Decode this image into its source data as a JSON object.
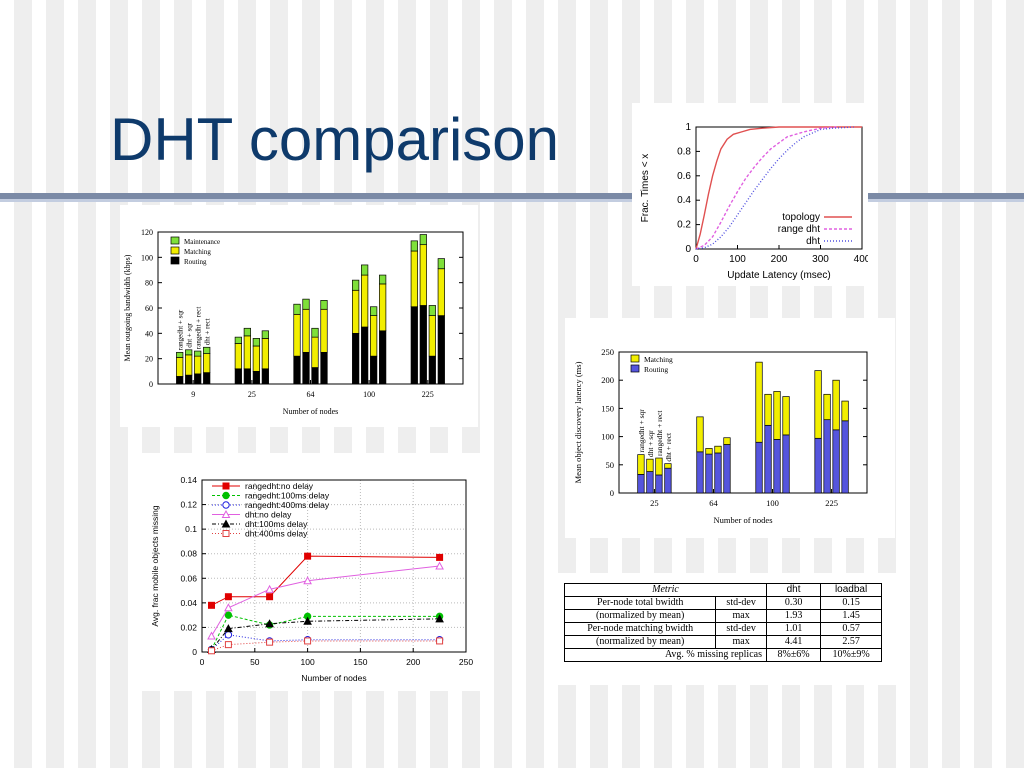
{
  "slide": {
    "title": "DHT comparison"
  },
  "chart_data": [
    {
      "id": "bandwidth",
      "type": "bar",
      "stacked": true,
      "ylabel": "Mean outgoing bandwidth (kbps)",
      "xlabel": "Number of nodes",
      "ylim": [
        0,
        120
      ],
      "yticks": [
        0,
        20,
        40,
        60,
        80,
        100,
        120
      ],
      "categories": [
        "9",
        "25",
        "64",
        "100",
        "225"
      ],
      "bar_labels": [
        "rangedht + sqr",
        "dht + sqr",
        "rangedht + rect",
        "dht + rect"
      ],
      "legend": [
        "Maintenance",
        "Matching",
        "Routing"
      ],
      "series": [
        {
          "name": "Routing",
          "color": "#000000",
          "values": [
            [
              6,
              7,
              8,
              9
            ],
            [
              12,
              12,
              10,
              12
            ],
            [
              22,
              25,
              13,
              25
            ],
            [
              40,
              45,
              22,
              42
            ],
            [
              61,
              62,
              22,
              54
            ]
          ]
        },
        {
          "name": "Matching",
          "color": "#f2ee00",
          "values": [
            [
              15,
              16,
              14,
              15
            ],
            [
              20,
              26,
              20,
              24
            ],
            [
              33,
              34,
              24,
              34
            ],
            [
              34,
              41,
              32,
              37
            ],
            [
              44,
              48,
              32,
              37
            ]
          ]
        },
        {
          "name": "Maintenance",
          "color": "#7fe03a",
          "values": [
            [
              4,
              4,
              4,
              5
            ],
            [
              5,
              6,
              6,
              6
            ],
            [
              8,
              8,
              7,
              7
            ],
            [
              8,
              8,
              7,
              7
            ],
            [
              8,
              8,
              8,
              8
            ]
          ]
        }
      ]
    },
    {
      "id": "latency-cdf",
      "type": "line",
      "ylabel": "Frac. Times < x",
      "xlabel": "Update Latency (msec)",
      "xlim": [
        0,
        400
      ],
      "ylim": [
        0,
        1
      ],
      "xticks": [
        0,
        100,
        200,
        300,
        400
      ],
      "yticks": [
        0,
        0.2,
        0.4,
        0.6,
        0.8,
        1
      ],
      "legend": [
        "topology",
        "range dht",
        "dht"
      ],
      "series": [
        {
          "name": "topology",
          "color": "#e05050",
          "dash": "",
          "x": [
            0,
            10,
            20,
            30,
            40,
            50,
            60,
            75,
            90,
            110,
            130,
            160,
            200,
            400
          ],
          "y": [
            0,
            0.12,
            0.28,
            0.45,
            0.6,
            0.72,
            0.82,
            0.9,
            0.94,
            0.96,
            0.98,
            0.99,
            1,
            1
          ]
        },
        {
          "name": "range dht",
          "color": "#e060e0",
          "dash": "3,2",
          "x": [
            0,
            20,
            40,
            60,
            80,
            100,
            120,
            140,
            160,
            180,
            200,
            220,
            260,
            300,
            340
          ],
          "y": [
            0,
            0.03,
            0.1,
            0.22,
            0.35,
            0.47,
            0.58,
            0.67,
            0.75,
            0.82,
            0.87,
            0.92,
            0.96,
            0.99,
            1
          ]
        },
        {
          "name": "dht",
          "color": "#5050e0",
          "dash": "1,2",
          "x": [
            0,
            20,
            40,
            60,
            80,
            100,
            120,
            140,
            160,
            180,
            200,
            220,
            240,
            260,
            280,
            300,
            330,
            380
          ],
          "y": [
            0,
            0.01,
            0.04,
            0.1,
            0.18,
            0.28,
            0.38,
            0.48,
            0.57,
            0.66,
            0.74,
            0.81,
            0.87,
            0.92,
            0.95,
            0.98,
            0.99,
            1
          ]
        }
      ]
    },
    {
      "id": "discovery-latency",
      "type": "bar",
      "stacked": true,
      "ylabel": "Mean object discovery latency (ms)",
      "xlabel": "Number of nodes",
      "ylim": [
        0,
        250
      ],
      "yticks": [
        0,
        50,
        100,
        150,
        200,
        250
      ],
      "categories": [
        "25",
        "64",
        "100",
        "225"
      ],
      "bar_labels": [
        "rangedht + sqr",
        "dht + sqr",
        "rangedht + rect",
        "dht + rect"
      ],
      "legend": [
        "Matching",
        "Routing"
      ],
      "series": [
        {
          "name": "Routing",
          "color": "#5555dd",
          "values": [
            [
              33,
              38,
              32,
              44
            ],
            [
              73,
              69,
              71,
              86
            ],
            [
              90,
              120,
              95,
              103
            ],
            [
              97,
              130,
              112,
              128
            ]
          ]
        },
        {
          "name": "Matching",
          "color": "#f2ee00",
          "values": [
            [
              35,
              22,
              30,
              8
            ],
            [
              62,
              10,
              12,
              12
            ],
            [
              142,
              55,
              85,
              68
            ],
            [
              120,
              45,
              88,
              35
            ]
          ]
        }
      ]
    },
    {
      "id": "missing-objects",
      "type": "line",
      "ylabel": "Avg. frac mobile objects missing",
      "xlabel": "Number of nodes",
      "xlim": [
        0,
        250
      ],
      "ylim": [
        0,
        0.14
      ],
      "xticks": [
        0,
        50,
        100,
        150,
        200,
        250
      ],
      "yticks": [
        0,
        0.02,
        0.04,
        0.06,
        0.08,
        0.1,
        0.12,
        0.14
      ],
      "series": [
        {
          "name": "rangedht:no delay",
          "color": "#e00000",
          "marker": "square-filled",
          "dash": "",
          "x": [
            9,
            25,
            64,
            100,
            225
          ],
          "y": [
            0.038,
            0.045,
            0.045,
            0.078,
            0.077
          ]
        },
        {
          "name": "rangedht:100ms delay",
          "color": "#00c000",
          "marker": "circle-filled",
          "dash": "3,2",
          "x": [
            9,
            25,
            64,
            100,
            225
          ],
          "y": [
            0.002,
            0.03,
            0.022,
            0.029,
            0.029
          ]
        },
        {
          "name": "rangedht:400ms delay",
          "color": "#2020e0",
          "marker": "circle-open",
          "dash": "1,2",
          "x": [
            9,
            25,
            64,
            100,
            225
          ],
          "y": [
            0.002,
            0.014,
            0.009,
            0.01,
            0.01
          ]
        },
        {
          "name": "dht:no delay",
          "color": "#e060e0",
          "marker": "triangle-open",
          "dash": "",
          "x": [
            9,
            25,
            64,
            100,
            225
          ],
          "y": [
            0.013,
            0.036,
            0.051,
            0.058,
            0.07
          ]
        },
        {
          "name": "dht:100ms delay",
          "color": "#000000",
          "marker": "triangle-filled",
          "dash": "4,2,1,2",
          "x": [
            9,
            25,
            64,
            100,
            225
          ],
          "y": [
            0.002,
            0.019,
            0.023,
            0.025,
            0.027
          ]
        },
        {
          "name": "dht:400ms delay",
          "color": "#e04040",
          "marker": "square-open",
          "dash": "1,2",
          "x": [
            9,
            25,
            64,
            100,
            225
          ],
          "y": [
            0.001,
            0.006,
            0.008,
            0.009,
            0.009
          ]
        }
      ]
    }
  ],
  "metrics_table": {
    "headers": [
      "Metric",
      "",
      "dht",
      "loadbal"
    ],
    "rows": [
      [
        "Per-node total bwidth",
        "std-dev",
        "0.30",
        "0.15"
      ],
      [
        "(normalized by mean)",
        "max",
        "1.93",
        "1.45"
      ],
      [
        "Per-node matching bwidth",
        "std-dev",
        "1.01",
        "0.57"
      ],
      [
        "(normalized by mean)",
        "max",
        "4.41",
        "2.57"
      ],
      [
        "Avg. % missing replicas",
        "",
        "8%±6%",
        "10%±9%"
      ]
    ]
  },
  "colors": {
    "title": "#0e3a6b",
    "rule_dark": "#7b8aa6",
    "rule_light": "#c3cde0"
  }
}
